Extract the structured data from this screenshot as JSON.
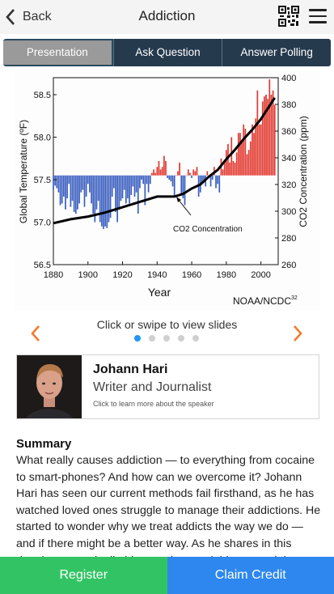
{
  "header": {
    "back_label": "Back",
    "title": "Addiction",
    "qr_icon": "qr-code-icon",
    "menu_icon": "hamburger-menu-icon"
  },
  "tabs": [
    {
      "label": "Presentation",
      "active": true
    },
    {
      "label": "Ask Question",
      "active": false
    },
    {
      "label": "Answer Polling",
      "active": false
    }
  ],
  "slide": {
    "hint": "Click or swipe to view slides",
    "count": 5,
    "current": 1,
    "prev_icon": "chevron-left-icon",
    "next_icon": "chevron-right-icon"
  },
  "chart_data": {
    "type": "bar",
    "xlabel": "Year",
    "ylabel_left": "Global Temperature (ºF)",
    "ylabel_right": "CO2 Concentration (ppm)",
    "annotation": "CO2 Concentration",
    "credit": "NOAA/NCDC",
    "credit_sup": "32",
    "xlim": [
      1880,
      2010
    ],
    "ylim_left": [
      56.5,
      58.7
    ],
    "ylim_right": [
      260,
      400
    ],
    "baseline": 57.55,
    "x_ticks": [
      "1880",
      "1900",
      "1920",
      "1940",
      "1960",
      "1980",
      "2000"
    ],
    "y_ticks_left": [
      "56.5",
      "57.0",
      "57.5",
      "58.0",
      "58.5"
    ],
    "y_ticks_right": [
      "260",
      "280",
      "300",
      "320",
      "340",
      "360",
      "380",
      "400"
    ],
    "colors": {
      "below": "#3b5fc0",
      "above": "#e23a32",
      "line": "#000000"
    },
    "years": [
      1880,
      1881,
      1882,
      1883,
      1884,
      1885,
      1886,
      1887,
      1888,
      1889,
      1890,
      1891,
      1892,
      1893,
      1894,
      1895,
      1896,
      1897,
      1898,
      1899,
      1900,
      1901,
      1902,
      1903,
      1904,
      1905,
      1906,
      1907,
      1908,
      1909,
      1910,
      1911,
      1912,
      1913,
      1914,
      1915,
      1916,
      1917,
      1918,
      1919,
      1920,
      1921,
      1922,
      1923,
      1924,
      1925,
      1926,
      1927,
      1928,
      1929,
      1930,
      1931,
      1932,
      1933,
      1934,
      1935,
      1936,
      1937,
      1938,
      1939,
      1940,
      1941,
      1942,
      1943,
      1944,
      1945,
      1946,
      1947,
      1948,
      1949,
      1950,
      1951,
      1952,
      1953,
      1954,
      1955,
      1956,
      1957,
      1958,
      1959,
      1960,
      1961,
      1962,
      1963,
      1964,
      1965,
      1966,
      1967,
      1968,
      1969,
      1970,
      1971,
      1972,
      1973,
      1974,
      1975,
      1976,
      1977,
      1978,
      1979,
      1980,
      1981,
      1982,
      1983,
      1984,
      1985,
      1986,
      1987,
      1988,
      1989,
      1990,
      1991,
      1992,
      1993,
      1994,
      1995,
      1996,
      1997,
      1998,
      1999,
      2000,
      2001,
      2002,
      2003,
      2004,
      2005,
      2006,
      2007,
      2008
    ],
    "temps": [
      57.38,
      57.43,
      57.4,
      57.35,
      57.2,
      57.22,
      57.3,
      57.15,
      57.28,
      57.45,
      57.18,
      57.25,
      57.12,
      57.1,
      57.15,
      57.22,
      57.35,
      57.38,
      57.18,
      57.3,
      57.45,
      57.35,
      57.22,
      57.1,
      57.0,
      57.15,
      57.25,
      57.0,
      56.95,
      56.92,
      56.95,
      56.93,
      57.0,
      57.05,
      57.3,
      57.4,
      57.12,
      57.0,
      57.15,
      57.25,
      57.28,
      57.38,
      57.22,
      57.28,
      57.22,
      57.32,
      57.42,
      57.3,
      57.35,
      57.1,
      57.4,
      57.5,
      57.45,
      57.2,
      57.45,
      57.35,
      57.45,
      57.58,
      57.62,
      57.58,
      57.65,
      57.72,
      57.62,
      57.65,
      57.78,
      57.72,
      57.52,
      57.5,
      57.48,
      57.42,
      57.3,
      57.55,
      57.6,
      57.7,
      57.32,
      57.28,
      57.2,
      57.55,
      57.62,
      57.58,
      57.52,
      57.62,
      57.6,
      57.65,
      57.3,
      57.35,
      57.45,
      57.5,
      57.42,
      57.6,
      57.55,
      57.42,
      57.5,
      57.65,
      57.4,
      57.45,
      57.35,
      57.75,
      57.62,
      57.72,
      57.85,
      57.92,
      57.7,
      58.0,
      57.72,
      57.7,
      57.82,
      58.05,
      58.05,
      57.95,
      58.15,
      58.1,
      57.8,
      57.85,
      57.95,
      58.15,
      58.05,
      58.22,
      58.55,
      58.15,
      58.15,
      58.42,
      58.48,
      58.5,
      58.45,
      58.68,
      58.5,
      58.55,
      58.38
    ],
    "co2": [
      [
        1880,
        291
      ],
      [
        1890,
        294
      ],
      [
        1900,
        296
      ],
      [
        1910,
        299
      ],
      [
        1920,
        303
      ],
      [
        1930,
        307
      ],
      [
        1940,
        311
      ],
      [
        1950,
        311
      ],
      [
        1955,
        313
      ],
      [
        1960,
        317
      ],
      [
        1965,
        320
      ],
      [
        1970,
        326
      ],
      [
        1975,
        331
      ],
      [
        1980,
        339
      ],
      [
        1985,
        346
      ],
      [
        1990,
        354
      ],
      [
        1995,
        361
      ],
      [
        2000,
        369
      ],
      [
        2005,
        379
      ],
      [
        2008,
        385
      ]
    ]
  },
  "speaker": {
    "name": "Johann Hari",
    "role": "Writer and Journalist",
    "hint": "Click to learn more about the speaker"
  },
  "summary": {
    "heading": "Summary",
    "text": "What really causes addiction — to everything from cocaine to smart-phones? And how can we overcome it? Johann Hari has seen our current methods fail firsthand, as he has watched loved ones struggle to manage their addictions. He started to wonder why we treat addicts the way we do — and if there might be a better way. As he shares in this deeply personal talk, his questions took him around the"
  },
  "footer": {
    "register_label": "Register",
    "credit_label": "Claim Credit",
    "colors": {
      "register": "#32c464",
      "credit": "#2d87ee"
    }
  }
}
